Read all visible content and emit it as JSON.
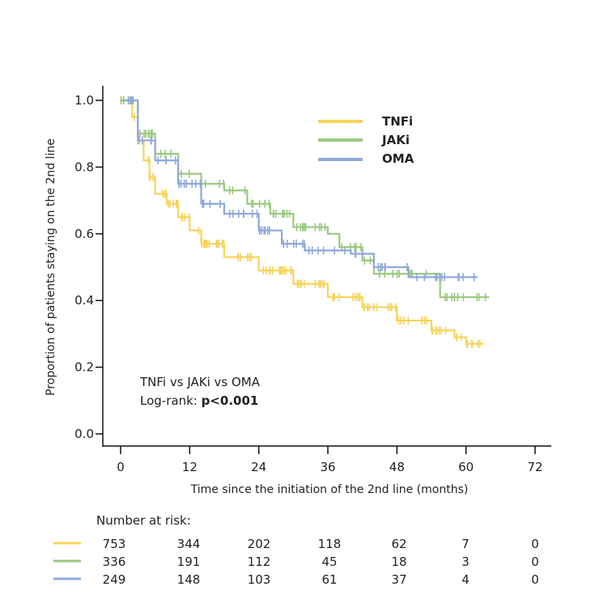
{
  "chart_data": {
    "type": "line",
    "subtype": "kaplan-meier",
    "title": "",
    "xlabel": "Time since the initiation of the 2nd line (months)",
    "ylabel": "Proportion of patients staying on the 2nd line",
    "xlim": [
      0,
      72
    ],
    "ylim": [
      0,
      1.0
    ],
    "xticks": [
      0,
      12,
      24,
      36,
      48,
      60,
      72
    ],
    "yticks": [
      0.0,
      0.2,
      0.4,
      0.6,
      0.8,
      1.0
    ],
    "ytick_labels": [
      "0.0",
      "0.2",
      "0.4",
      "0.6",
      "0.8",
      "1.0"
    ],
    "grid": false,
    "legend_position": "top-right",
    "series": [
      {
        "name": "TNFi",
        "color": "#F5D55A",
        "x": [
          0,
          2,
          3,
          4,
          5,
          6,
          8,
          10,
          12,
          14,
          18,
          24,
          30,
          36,
          42,
          48,
          54,
          58,
          60,
          63
        ],
        "y": [
          1.0,
          0.95,
          0.88,
          0.82,
          0.77,
          0.72,
          0.69,
          0.65,
          0.61,
          0.57,
          0.53,
          0.49,
          0.45,
          0.41,
          0.38,
          0.34,
          0.31,
          0.29,
          0.27,
          0.27
        ]
      },
      {
        "name": "JAKi",
        "color": "#9BC97E",
        "x": [
          0,
          3,
          6,
          10,
          14,
          18,
          22,
          26,
          30,
          36,
          38,
          42,
          44,
          55,
          55.5,
          64
        ],
        "y": [
          1.0,
          0.9,
          0.84,
          0.78,
          0.75,
          0.73,
          0.69,
          0.66,
          0.62,
          0.6,
          0.56,
          0.52,
          0.48,
          0.48,
          0.41,
          0.41
        ]
      },
      {
        "name": "OMA",
        "color": "#8EA9DB",
        "x": [
          0,
          3,
          6,
          10,
          14,
          18,
          24,
          28,
          32,
          38,
          40,
          44,
          48,
          50,
          62
        ],
        "y": [
          1.0,
          0.88,
          0.82,
          0.75,
          0.69,
          0.66,
          0.61,
          0.57,
          0.55,
          0.55,
          0.54,
          0.5,
          0.5,
          0.47,
          0.47
        ]
      }
    ],
    "annotations": {
      "comparison": "TNFi vs JAKi vs OMA",
      "test_label": "Log-rank: ",
      "p_value": "p<0.001"
    },
    "risk_table": {
      "title": "Number at risk:",
      "times": [
        0,
        12,
        24,
        36,
        48,
        60,
        72
      ],
      "rows": [
        {
          "name": "TNFi",
          "color": "#F5D55A",
          "values": [
            "753",
            "344",
            "202",
            "118",
            "62",
            "7",
            "0"
          ]
        },
        {
          "name": "JAKi",
          "color": "#9BC97E",
          "values": [
            "336",
            "191",
            "112",
            "45",
            "18",
            "3",
            "0"
          ]
        },
        {
          "name": "OMA",
          "color": "#8EA9DB",
          "values": [
            "249",
            "148",
            "103",
            "61",
            "37",
            "4",
            "0"
          ]
        }
      ]
    }
  }
}
